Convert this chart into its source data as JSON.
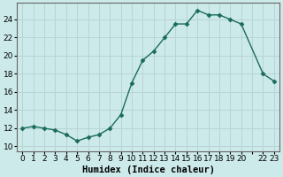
{
  "x": [
    0,
    1,
    2,
    3,
    4,
    5,
    6,
    7,
    8,
    9,
    10,
    11,
    12,
    13,
    14,
    15,
    16,
    17,
    18,
    19,
    20,
    22,
    23
  ],
  "y": [
    12,
    12.2,
    12,
    11.8,
    11.3,
    10.6,
    11.0,
    11.3,
    12.0,
    13.5,
    17.0,
    19.5,
    20.5,
    22.0,
    23.5,
    23.5,
    25.0,
    24.5,
    24.5,
    24.0,
    23.5,
    18.0,
    17.2
  ],
  "line_color": "#1a6b5a",
  "marker": "D",
  "marker_size": 2.5,
  "bg_color": "#cdeaea",
  "grid_color": "#b8d4d4",
  "xlabel": "Humidex (Indice chaleur)",
  "xlim": [
    -0.5,
    23.5
  ],
  "ylim": [
    9.5,
    25.8
  ],
  "yticks": [
    10,
    12,
    14,
    16,
    18,
    20,
    22,
    24
  ],
  "xlabel_fontsize": 7.5,
  "tick_fontsize": 6.5
}
